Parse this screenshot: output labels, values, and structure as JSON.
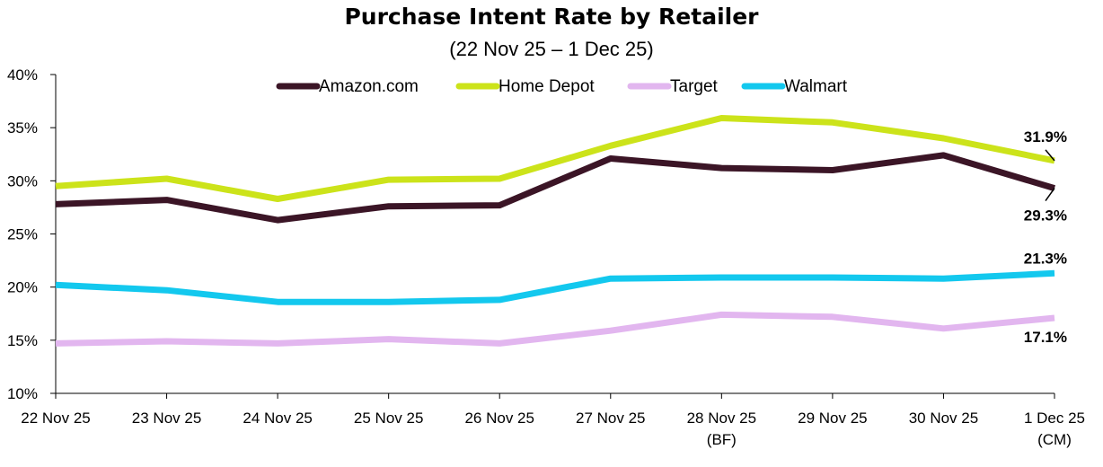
{
  "chart_data": {
    "type": "line",
    "title": "Purchase Intent Rate by Retailer",
    "subtitle": "(22 Nov 25 – 1 Dec 25)",
    "categories": [
      [
        "22 Nov 25"
      ],
      [
        "23 Nov 25"
      ],
      [
        "24 Nov 25"
      ],
      [
        "25 Nov 25"
      ],
      [
        "26 Nov 25"
      ],
      [
        "27 Nov 25"
      ],
      [
        "28 Nov 25",
        "(BF)"
      ],
      [
        "29 Nov 25"
      ],
      [
        "30 Nov 25"
      ],
      [
        "1 Dec 25",
        "(CM)"
      ]
    ],
    "ylim": [
      10,
      40
    ],
    "yticks": [
      "10%",
      "15%",
      "20%",
      "25%",
      "30%",
      "35%",
      "40%"
    ],
    "grid": false,
    "legend_position": "top",
    "series": [
      {
        "name": "Amazon.com",
        "color": "#3b1526",
        "values": [
          27.8,
          28.2,
          26.3,
          27.6,
          27.7,
          32.1,
          31.2,
          31.0,
          32.4,
          29.3
        ],
        "end_label": "29.3%"
      },
      {
        "name": "Home Depot",
        "color": "#cce31a",
        "values": [
          29.5,
          30.2,
          28.3,
          30.1,
          30.2,
          33.3,
          35.9,
          35.5,
          34.0,
          31.9
        ],
        "end_label": "31.9%"
      },
      {
        "name": "Target",
        "color": "#e2b6ef",
        "values": [
          14.7,
          14.9,
          14.7,
          15.1,
          14.7,
          15.9,
          17.4,
          17.2,
          16.1,
          17.1
        ],
        "end_label": "17.1%"
      },
      {
        "name": "Walmart",
        "color": "#13c8ee",
        "values": [
          20.2,
          19.7,
          18.6,
          18.6,
          18.8,
          20.8,
          20.9,
          20.9,
          20.8,
          21.3
        ],
        "end_label": "21.3%"
      }
    ]
  }
}
